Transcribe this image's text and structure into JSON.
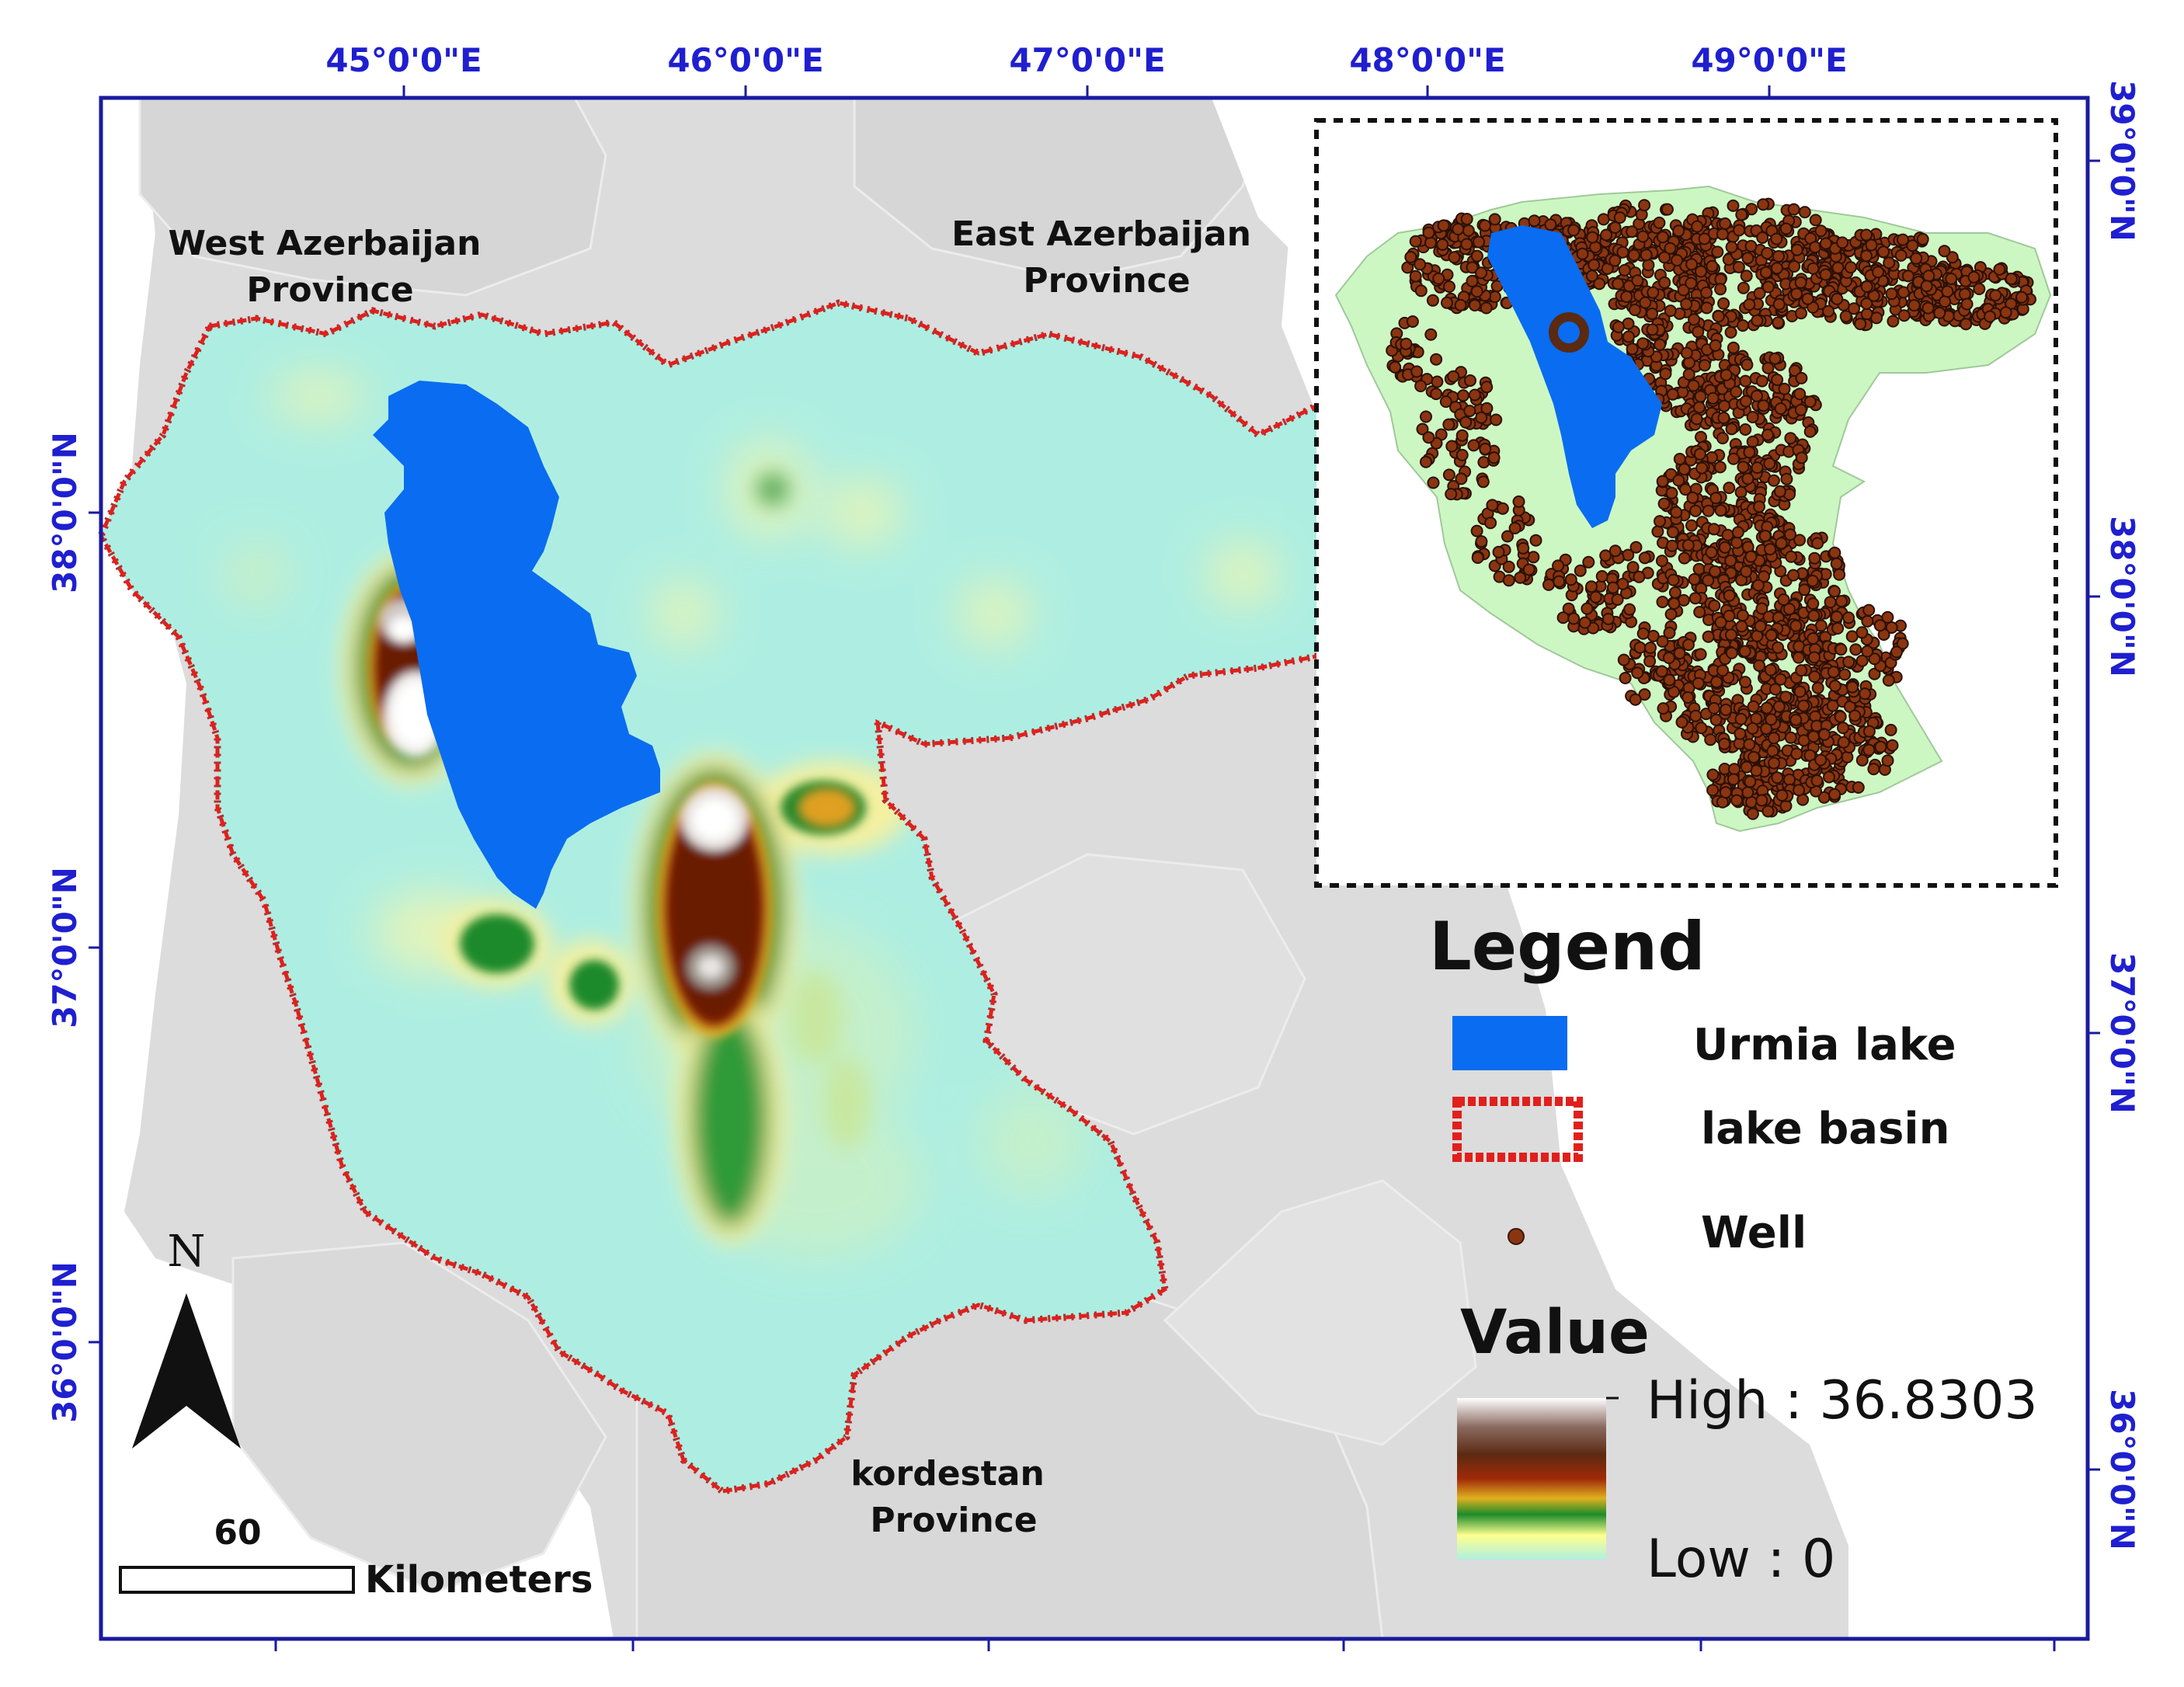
{
  "axes": {
    "top_longitudes": [
      "45°0'0\"E",
      "46°0'0\"E",
      "47°0'0\"E",
      "48°0'0\"E",
      "49°0'0\"E"
    ],
    "left_latitudes": [
      "38°0'0\"N",
      "37°0'0\"N",
      "36°0'0\"N"
    ],
    "right_latitudes": [
      "39°0'0\"N",
      "38°0'0\"N",
      "37°0'0\"N",
      "36°0'0\"N"
    ]
  },
  "provinces": {
    "west": [
      "West Azerbaijan",
      "Province"
    ],
    "east": [
      "East Azerbaijan",
      "Province"
    ],
    "south": [
      "kordestan",
      "Province"
    ]
  },
  "legend": {
    "title": "Legend",
    "items": [
      {
        "label": "Urmia lake",
        "symbol": "blue-fill",
        "color": "#0a6cf0"
      },
      {
        "label": "lake basin",
        "symbol": "red-dashed-outline",
        "color": "#e0201c"
      },
      {
        "label": "Well",
        "symbol": "brown-dot",
        "color": "#8a3510"
      }
    ],
    "value_title": "Value",
    "high_label": "High : 36.8303",
    "low_label": "Low : 0",
    "ramp_colors": [
      "#ffffff",
      "#6b3525",
      "#8a2a08",
      "#1b8c2a",
      "#ffff80",
      "#aef0e0"
    ]
  },
  "scale_bar": {
    "value": "60",
    "unit": "Kilometers"
  },
  "north_arrow": {
    "letter": "N"
  },
  "colors": {
    "basin_fill": "#aeeee2",
    "lake": "#0a6cf0",
    "background_land": "#dcdcdc",
    "inset_fill": "#cdf7c2",
    "frame": "#1a1aa0"
  }
}
